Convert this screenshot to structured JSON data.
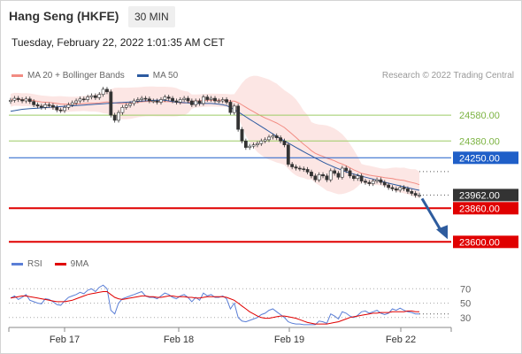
{
  "header": {
    "instrument": "Hang Seng (HKFE)",
    "timeframe": "30 MIN",
    "datetime": "Tuesday, February 22, 2022 1:01:35 AM CET"
  },
  "credit": "Research © 2022 Trading Central",
  "colors": {
    "bollinger": "#f28b82",
    "ma50": "#2c5aa0",
    "support": "#e00000",
    "resistance": "#9ccc65",
    "pivot": "#1f5fc8",
    "price_tag": "#333333",
    "rsi": "#5b7fd6",
    "rsi_ma": "#e00000",
    "arrow": "#2e5c9e"
  },
  "chart_data": [
    {
      "type": "candlestick",
      "title": "",
      "legend": [
        {
          "name": "MA 20 + Bollinger Bands",
          "color": "#f28b82"
        },
        {
          "name": "MA 50",
          "color": "#2c5aa0"
        }
      ],
      "legend_position": "top-left",
      "x_ticks": [
        "Feb 17",
        "Feb 18",
        "Feb 19",
        "Feb 22"
      ],
      "ylim": [
        23520,
        24820
      ],
      "levels": [
        {
          "label": "24580.00",
          "value": 24580,
          "kind": "resistance"
        },
        {
          "label": "24380.00",
          "value": 24380,
          "kind": "resistance"
        },
        {
          "label": "24250.00",
          "value": 24250,
          "kind": "pivot"
        },
        {
          "label": "23962.00",
          "value": 23962,
          "kind": "last"
        },
        {
          "label": "23860.00",
          "value": 23860,
          "kind": "support"
        },
        {
          "label": "23600.00",
          "value": 23600,
          "kind": "support"
        }
      ],
      "close": [
        24695,
        24710,
        24700,
        24690,
        24705,
        24685,
        24660,
        24650,
        24640,
        24660,
        24655,
        24640,
        24620,
        24615,
        24640,
        24660,
        24675,
        24690,
        24705,
        24700,
        24720,
        24730,
        24715,
        24740,
        24780,
        24760,
        24580,
        24540,
        24600,
        24640,
        24655,
        24670,
        24690,
        24700,
        24710,
        24705,
        24690,
        24690,
        24680,
        24700,
        24720,
        24710,
        24690,
        24680,
        24700,
        24710,
        24690,
        24660,
        24690,
        24670,
        24720,
        24700,
        24710,
        24690,
        24690,
        24700,
        24680,
        24600,
        24650,
        24470,
        24380,
        24330,
        24340,
        24350,
        24360,
        24380,
        24390,
        24410,
        24420,
        24405,
        24380,
        24350,
        24200,
        24180,
        24170,
        24165,
        24160,
        24140,
        24110,
        24080,
        24120,
        24110,
        24080,
        24150,
        24130,
        24100,
        24170,
        24150,
        24110,
        24090,
        24110,
        24070,
        24060,
        24050,
        24070,
        24080,
        24060,
        24040,
        24020,
        24010,
        24000,
        24020,
        24010,
        23990,
        23975,
        23960,
        23962
      ],
      "ma50": [
        24610,
        24615,
        24620,
        24625,
        24628,
        24630,
        24632,
        24634,
        24636,
        24638,
        24640,
        24642,
        24644,
        24646,
        24648,
        24650,
        24652,
        24654,
        24656,
        24658,
        24660,
        24662,
        24664,
        24666,
        24668,
        24670,
        24672,
        24674,
        24676,
        24678,
        24680,
        24682,
        24684,
        24686,
        24688,
        24690,
        24692,
        24694,
        24695,
        24695,
        24695,
        24690,
        24685,
        24680,
        24678,
        24676,
        24674,
        24672,
        24670,
        24670,
        24670,
        24670,
        24670,
        24668,
        24665,
        24660,
        24654,
        24640,
        24623,
        24605,
        24586,
        24567,
        24548,
        24529,
        24511,
        24492,
        24473,
        24454,
        24435,
        24416,
        24398,
        24381,
        24364,
        24347,
        24330,
        24314,
        24297,
        24281,
        24265,
        24249,
        24233,
        24217,
        24203,
        24190,
        24177,
        24165,
        24153,
        24142,
        24133,
        24124,
        24116,
        24108,
        24100,
        24093,
        24085,
        24077,
        24070,
        24062,
        24054,
        24047,
        24040,
        24033,
        24026,
        24019,
        24012,
        24005,
        23999
      ]
    },
    {
      "type": "line",
      "title": "",
      "legend": [
        {
          "name": "RSI",
          "color": "#5b7fd6"
        },
        {
          "name": "9MA",
          "color": "#e00000"
        }
      ],
      "legend_position": "top-left",
      "y_ticks": [
        "70",
        "50",
        "30"
      ],
      "ylim": [
        10,
        90
      ],
      "rsi": [
        57,
        60,
        55,
        58,
        62,
        54,
        52,
        50,
        49,
        56,
        55,
        52,
        48,
        47,
        53,
        58,
        60,
        62,
        65,
        63,
        68,
        70,
        66,
        72,
        75,
        70,
        40,
        35,
        50,
        56,
        58,
        60,
        62,
        64,
        66,
        60,
        58,
        58,
        56,
        60,
        64,
        62,
        58,
        56,
        60,
        62,
        58,
        52,
        58,
        54,
        64,
        60,
        62,
        58,
        58,
        60,
        56,
        42,
        50,
        30,
        25,
        24,
        26,
        28,
        30,
        34,
        36,
        40,
        42,
        38,
        34,
        30,
        24,
        22,
        21,
        21,
        20,
        20,
        20,
        20,
        25,
        24,
        22,
        35,
        32,
        28,
        38,
        36,
        32,
        30,
        33,
        38,
        39,
        36,
        38,
        40,
        36,
        34,
        36,
        42,
        40,
        43,
        40,
        38,
        37,
        35,
        35
      ],
      "rsi_ma": [
        57,
        58,
        59,
        60,
        60,
        59,
        58,
        57,
        56,
        55,
        54,
        53,
        52,
        52,
        52,
        53,
        54,
        56,
        58,
        60,
        62,
        63,
        64,
        65,
        66,
        66,
        62,
        58,
        56,
        55,
        56,
        57,
        58,
        59,
        60,
        60,
        59,
        59,
        58,
        58,
        59,
        60,
        60,
        59,
        59,
        59,
        58,
        58,
        57,
        57,
        58,
        59,
        59,
        59,
        59,
        59,
        58,
        56,
        54,
        50,
        46,
        42,
        38,
        35,
        32,
        30,
        29,
        29,
        30,
        31,
        32,
        32,
        31,
        30,
        29,
        27,
        25,
        23,
        22,
        21,
        21,
        21,
        21,
        22,
        23,
        24,
        26,
        28,
        30,
        31,
        32,
        33,
        34,
        35,
        36,
        36,
        37,
        37,
        37,
        38,
        38,
        38,
        38,
        39,
        39,
        38,
        38
      ]
    }
  ]
}
